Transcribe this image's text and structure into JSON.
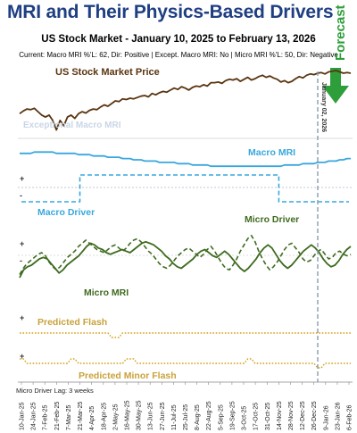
{
  "header": {
    "title": "MRI and Their Physics-Based Drivers",
    "subtitle": "US Stock Market - January 10, 2025 to February 13, 2026",
    "status": "Current: Macro MRI %'L: 62, Dir: Positive | Except. Macro MRI: No | Micro MRI %'L: 50, Dir: Negative"
  },
  "chart_data": {
    "type": "line",
    "title": "MRI and Their Physics-Based Drivers",
    "subtitle": "US Stock Market - January 10, 2025 to February 13, 2026",
    "x_tick_labels": [
      "10-Jan-25",
      "24-Jan-25",
      "7-Feb-25",
      "21-Feb-25",
      "7-Mar-25",
      "21-Mar-25",
      "4-Apr-25",
      "18-Apr-25",
      "2-May-25",
      "16-May-25",
      "30-May-25",
      "13-Jun-25",
      "27-Jun-25",
      "11-Jul-25",
      "25-Jul-25",
      "8-Aug-25",
      "22-Aug-25",
      "5-Sep-25",
      "19-Sep-25",
      "3-Oct-25",
      "17-Oct-25",
      "31-Oct-25",
      "14-Nov-25",
      "28-Nov-25",
      "12-Dec-25",
      "26-Dec-25",
      "9-Jan-26",
      "23-Jan-26",
      "6-Feb-26"
    ],
    "current_date_label": "January 02, 2026",
    "forecast_label": "Forecast",
    "footnote": "Micro Driver Lag: 3 weeks",
    "plus_marker": "+",
    "minus_marker": "-",
    "panels": [
      {
        "id": "price",
        "series": [
          {
            "name": "US Stock Market Price",
            "color": "#5a3510",
            "values": [
              60,
              64,
              67,
              66,
              68,
              63,
              58,
              55,
              58,
              50,
              36,
              50,
              42,
              55,
              58,
              53,
              60,
              63,
              61,
              65,
              67,
              66,
              70,
              73,
              71,
              75,
              79,
              78,
              82,
              81,
              83,
              82,
              84,
              86,
              87,
              85,
              90,
              88,
              91,
              93,
              92,
              95,
              98,
              96,
              100,
              98,
              95,
              99,
              101,
              100,
              103,
              101,
              106,
              106,
              107,
              105,
              109,
              111,
              110,
              112,
              108,
              111,
              114,
              110,
              112,
              115,
              117,
              114,
              116,
              113,
              111,
              107,
              109,
              106,
              108,
              112,
              115,
              113,
              117,
              119,
              118,
              120,
              121,
              119,
              122,
              123,
              124,
              122,
              120,
              121,
              120
            ]
          }
        ]
      },
      {
        "id": "macro_mri",
        "series": [
          {
            "name": "Macro MRI",
            "color": "#39a7dd",
            "values": [
              58,
              58,
              58,
              58,
              59,
              59,
              59,
              59,
              59,
              59,
              58,
              58,
              58,
              58,
              58,
              58,
              57,
              57,
              57,
              57,
              56,
              56,
              56,
              56,
              55,
              55,
              55,
              55,
              54,
              54,
              54,
              53,
              53,
              53,
              52,
              52,
              52,
              52,
              51,
              51,
              51,
              51,
              51,
              50,
              50,
              50,
              50,
              49,
              49,
              49,
              49,
              49,
              48,
              48,
              48,
              48,
              48,
              48,
              48,
              48,
              48,
              48,
              48,
              48,
              48,
              48,
              48,
              48,
              48,
              48,
              48,
              48,
              49,
              49,
              49,
              49,
              49,
              50,
              50,
              50,
              50,
              51,
              51,
              51,
              52,
              52,
              52,
              53,
              53,
              54,
              54
            ]
          }
        ],
        "annotation": "Exceptional Macro MRI"
      },
      {
        "id": "macro_driver",
        "series": [
          {
            "name": "Macro Driver",
            "color": "#39a7dd",
            "style": "dashed",
            "values": [
              0,
              0,
              0,
              0,
              0,
              0,
              0,
              0,
              0,
              0,
              0,
              0,
              0,
              0,
              0,
              0,
              0,
              0,
              0,
              0,
              0,
              0,
              0,
              0,
              0,
              0,
              0,
              0,
              0,
              0,
              0,
              0,
              0,
              0,
              0,
              0,
              0,
              0,
              0,
              0,
              0,
              0,
              0,
              0,
              0,
              0,
              0,
              0,
              0,
              0,
              0,
              0,
              0,
              0,
              0,
              0,
              0,
              0,
              0,
              0,
              0,
              0,
              0,
              0,
              0,
              0,
              0,
              0,
              0,
              0,
              0,
              0,
              0,
              0,
              0,
              0,
              0,
              0,
              0,
              0,
              0,
              0,
              0,
              0,
              0,
              0,
              0,
              0,
              0,
              0,
              0
            ],
            "segments": [
              {
                "from": "10-Jan-25",
                "to": "21-Mar-25",
                "value": -1
              },
              {
                "from": "21-Mar-25",
                "to": "14-Nov-25",
                "value": 1
              },
              {
                "from": "14-Nov-25",
                "to": "6-Feb-26",
                "value": -1
              }
            ]
          }
        ]
      },
      {
        "id": "micro",
        "series": [
          {
            "name": "Micro MRI",
            "color": "#3e6b1f",
            "values": [
              -1.2,
              -0.7,
              -0.5,
              -0.4,
              -0.2,
              0.0,
              0.1,
              0.0,
              -0.3,
              -0.6,
              -0.9,
              -0.7,
              -0.4,
              -0.2,
              0.0,
              0.2,
              0.5,
              0.8,
              1.0,
              0.9,
              0.7,
              0.6,
              0.4,
              0.3,
              0.4,
              0.5,
              0.6,
              0.5,
              0.4,
              0.6,
              0.8,
              1.0,
              1.1,
              1.0,
              0.9,
              0.7,
              0.5,
              0.2,
              0.0,
              -0.3,
              -0.5,
              -0.6,
              -0.4,
              -0.2,
              0.0,
              0.3,
              0.5,
              0.6,
              0.4,
              0.2,
              0.1,
              0.3,
              0.5,
              0.3,
              0.0,
              -0.3,
              -0.6,
              -0.8,
              -0.6,
              -0.3,
              0.0,
              0.4,
              0.7,
              0.9,
              0.7,
              0.3,
              -0.1,
              -0.4,
              -0.6,
              -0.4,
              -0.1,
              0.2,
              0.5,
              0.7,
              0.9,
              0.7,
              0.4,
              0.0,
              -0.3,
              -0.5,
              -0.4,
              -0.1,
              0.3,
              0.6,
              0.8
            ]
          },
          {
            "name": "Micro Driver",
            "color": "#3e6b1f",
            "style": "dashed",
            "values": [
              -1.0,
              -0.6,
              -0.3,
              -0.1,
              0.1,
              0.3,
              0.4,
              0.2,
              -0.2,
              -0.5,
              -0.7,
              -0.5,
              -0.2,
              0.1,
              0.3,
              0.5,
              0.8,
              1.0,
              1.2,
              1.0,
              0.8,
              0.6,
              0.5,
              0.4,
              0.6,
              0.8,
              0.9,
              0.7,
              0.5,
              0.7,
              1.0,
              1.2,
              1.3,
              1.1,
              0.8,
              0.5,
              0.3,
              0.0,
              -0.3,
              -0.5,
              -0.6,
              -0.4,
              -0.1,
              0.2,
              0.4,
              0.6,
              0.7,
              0.5,
              0.3,
              0.1,
              0.3,
              0.6,
              0.8,
              0.5,
              0.1,
              -0.3,
              -0.6,
              -0.7,
              -0.4,
              0.0,
              0.5,
              0.9,
              1.3,
              1.5,
              1.1,
              0.5,
              0.0,
              -0.4,
              -0.7,
              -0.5,
              -0.2,
              0.2,
              0.6,
              0.9,
              1.0,
              0.7,
              0.4,
              0.0,
              -0.2,
              -0.1,
              0.2,
              0.5,
              0.6,
              0.3,
              0.0,
              0.1,
              0.4,
              0.5,
              0.3,
              0.2,
              0.3
            ]
          }
        ]
      },
      {
        "id": "predicted_flash",
        "series": [
          {
            "name": "Predicted Flash",
            "color": "#d4a017",
            "style": "dotted",
            "values": [
              0,
              0,
              0,
              0,
              0,
              0,
              0,
              0,
              0,
              0,
              0,
              0,
              0,
              0,
              0,
              0,
              0,
              0,
              0,
              0,
              0,
              0,
              0,
              0,
              0,
              -1,
              -1,
              -1,
              0,
              0,
              0,
              0,
              0,
              0,
              0,
              0,
              0,
              0,
              0,
              0,
              0,
              0,
              0,
              0,
              0,
              0,
              0,
              0,
              0,
              0,
              0,
              0,
              0,
              0,
              0,
              0,
              0,
              0,
              0,
              0,
              0,
              0,
              0,
              0,
              0,
              0,
              0,
              0,
              0,
              0,
              0,
              0,
              0,
              0,
              0,
              0,
              0,
              0,
              0,
              0,
              0,
              0,
              0,
              0,
              0,
              0,
              0,
              0,
              0,
              0,
              0
            ]
          }
        ]
      },
      {
        "id": "predicted_minor_flash",
        "series": [
          {
            "name": "Predicted Minor Flash",
            "color": "#d4a017",
            "style": "dotted",
            "values": [
              1,
              1,
              0,
              0,
              0,
              0,
              0,
              0,
              0,
              0,
              0,
              0,
              0,
              0,
              1,
              1,
              0,
              0,
              0,
              0,
              0,
              0,
              0,
              0,
              0,
              0,
              0,
              0,
              0,
              1,
              1,
              1,
              0,
              0,
              0,
              0,
              0,
              0,
              0,
              0,
              0,
              0,
              0,
              0,
              0,
              0,
              0,
              0,
              0,
              0,
              0,
              0,
              0,
              0,
              0,
              0,
              0,
              0,
              0,
              0,
              0,
              0,
              1,
              1,
              0,
              0,
              0,
              0,
              0,
              0,
              0,
              0,
              0,
              0,
              0,
              0,
              0,
              0,
              0,
              0,
              0,
              -1,
              -1,
              0,
              0,
              0,
              0,
              0,
              0,
              0,
              0
            ]
          }
        ]
      }
    ]
  }
}
